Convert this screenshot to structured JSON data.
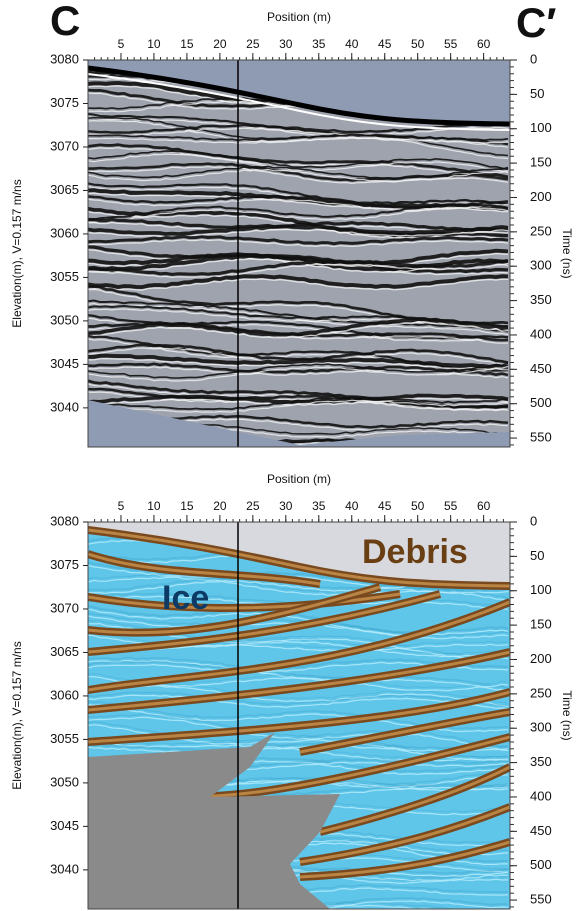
{
  "chart_data": [
    {
      "type": "radargram",
      "left_label": "C",
      "right_label": "C′",
      "xlabel": "Position (m)",
      "ylabel": "Elevation(m), V=0.157 m/ns",
      "y2label": "Time (ns)",
      "xlim": [
        0,
        64
      ],
      "xticks": [
        5,
        10,
        15,
        20,
        25,
        30,
        35,
        40,
        45,
        50,
        55,
        60
      ],
      "ylim": [
        3035.5,
        3080
      ],
      "yticks": [
        3040,
        3045,
        3050,
        3055,
        3060,
        3065,
        3070,
        3075,
        3080
      ],
      "y2lim": [
        0,
        563
      ],
      "y2ticks": [
        0,
        50,
        100,
        150,
        200,
        250,
        300,
        350,
        400,
        450,
        500,
        550
      ]
    },
    {
      "type": "interpretation",
      "annotations": [
        "Ice",
        "Debris"
      ],
      "xlabel": "Position (m)",
      "ylabel": "Elevation(m), V=0.157 m/ns",
      "y2label": "Time (ns)",
      "xlim": [
        0,
        64
      ],
      "xticks": [
        5,
        10,
        15,
        20,
        25,
        30,
        35,
        40,
        45,
        50,
        55,
        60
      ],
      "ylim": [
        3035.5,
        3080
      ],
      "yticks": [
        3040,
        3045,
        3050,
        3055,
        3060,
        3065,
        3070,
        3075,
        3080
      ],
      "y2lim": [
        0,
        563
      ],
      "y2ticks": [
        0,
        50,
        100,
        150,
        200,
        250,
        300,
        350,
        400,
        450,
        500,
        550
      ]
    }
  ]
}
